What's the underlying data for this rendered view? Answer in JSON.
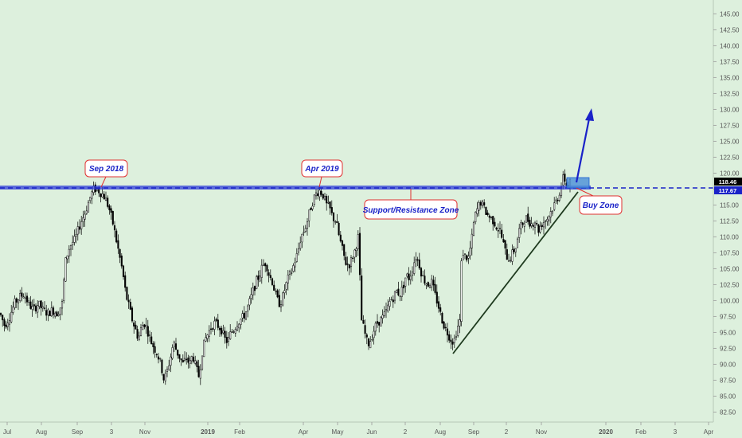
{
  "chart_data": {
    "type": "candlestick",
    "title": "",
    "y_ticks": [
      "82.50",
      "85.00",
      "87.50",
      "90.00",
      "92.50",
      "95.00",
      "97.50",
      "100.00",
      "102.50",
      "105.00",
      "107.50",
      "110.00",
      "112.50",
      "115.00",
      "117.50",
      "120.00",
      "122.50",
      "125.00",
      "127.50",
      "130.00",
      "132.50",
      "135.00",
      "137.50",
      "140.00",
      "142.50",
      "145.00"
    ],
    "x_ticks": [
      "Jul",
      "Aug",
      "Sep",
      "3",
      "Nov",
      "2019",
      "Feb",
      "Apr",
      "May",
      "Jun",
      "2",
      "Aug",
      "Sep",
      "2",
      "Nov",
      "2020",
      "Feb",
      "3",
      "Apr"
    ],
    "ylim": [
      81,
      147
    ],
    "current_price_label": "118.46",
    "level_price_label": "117.67",
    "current_price": 118.46,
    "resistance_level": 117.67,
    "colors": {
      "background": "#ddf0dd",
      "candles": "#000000",
      "level_line": "#1a22c8",
      "zone": "#2f3fd8",
      "buy_zone": "#4a8fd8",
      "trendline": "#1e3a1e",
      "arrow": "#1a22c8",
      "callout_border": "#e03030",
      "current_tag": "#000000",
      "level_tag": "#1a22c8"
    },
    "annotations": [
      {
        "name": "callout-sep-2018",
        "text": "Sep 2018"
      },
      {
        "name": "callout-apr-2019",
        "text": "Apr 2019"
      },
      {
        "name": "callout-support-resistance",
        "text": "Support/Resistance Zone"
      },
      {
        "name": "callout-buy-zone",
        "text": "Buy Zone"
      }
    ],
    "price_path": [
      [
        0,
        98
      ],
      [
        6,
        96
      ],
      [
        12,
        97.5
      ],
      [
        18,
        99.5
      ],
      [
        24,
        100.5
      ],
      [
        30,
        101
      ],
      [
        36,
        99.5
      ],
      [
        42,
        98.5
      ],
      [
        48,
        99.5
      ],
      [
        54,
        98.5
      ],
      [
        60,
        98
      ],
      [
        66,
        98.5
      ],
      [
        72,
        98
      ],
      [
        78,
        99.5
      ],
      [
        82,
        106
      ],
      [
        86,
        108
      ],
      [
        90,
        109
      ],
      [
        94,
        109.5
      ],
      [
        98,
        111
      ],
      [
        102,
        112.5
      ],
      [
        106,
        113.5
      ],
      [
        110,
        115
      ],
      [
        114,
        116.5
      ],
      [
        118,
        117.5
      ],
      [
        122,
        117.5
      ],
      [
        126,
        117
      ],
      [
        130,
        116.5
      ],
      [
        134,
        115.5
      ],
      [
        138,
        114
      ],
      [
        142,
        112
      ],
      [
        146,
        109.5
      ],
      [
        150,
        107
      ],
      [
        154,
        104.5
      ],
      [
        158,
        101
      ],
      [
        162,
        99
      ],
      [
        166,
        97
      ],
      [
        170,
        95.5
      ],
      [
        174,
        94
      ],
      [
        178,
        96
      ],
      [
        182,
        96.5
      ],
      [
        186,
        95
      ],
      [
        190,
        93.5
      ],
      [
        194,
        92.5
      ],
      [
        198,
        91.5
      ],
      [
        202,
        90
      ],
      [
        206,
        87.5
      ],
      [
        210,
        89
      ],
      [
        214,
        91
      ],
      [
        218,
        93.5
      ],
      [
        222,
        92
      ],
      [
        226,
        91
      ],
      [
        230,
        90
      ],
      [
        234,
        91
      ],
      [
        238,
        90
      ],
      [
        242,
        91.5
      ],
      [
        246,
        89.5
      ],
      [
        250,
        88
      ],
      [
        254,
        92
      ],
      [
        258,
        94
      ],
      [
        262,
        95
      ],
      [
        266,
        96
      ],
      [
        270,
        96.5
      ],
      [
        274,
        96
      ],
      [
        278,
        95.5
      ],
      [
        282,
        94
      ],
      [
        286,
        93.5
      ],
      [
        290,
        95
      ],
      [
        294,
        95.5
      ],
      [
        298,
        96.5
      ],
      [
        302,
        97
      ],
      [
        306,
        97.5
      ],
      [
        310,
        98.5
      ],
      [
        314,
        100
      ],
      [
        318,
        101.5
      ],
      [
        322,
        103
      ],
      [
        326,
        104
      ],
      [
        330,
        105.5
      ],
      [
        334,
        106
      ],
      [
        338,
        104
      ],
      [
        342,
        103
      ],
      [
        346,
        101
      ],
      [
        350,
        99.5
      ],
      [
        354,
        100
      ],
      [
        358,
        102
      ],
      [
        362,
        103.5
      ],
      [
        366,
        104.5
      ],
      [
        370,
        106
      ],
      [
        374,
        107.5
      ],
      [
        378,
        110
      ],
      [
        382,
        111
      ],
      [
        386,
        112.5
      ],
      [
        390,
        114.5
      ],
      [
        394,
        116
      ],
      [
        398,
        117
      ],
      [
        402,
        117.3
      ],
      [
        406,
        116.5
      ],
      [
        410,
        115
      ],
      [
        414,
        114.5
      ],
      [
        418,
        113
      ],
      [
        422,
        112.5
      ],
      [
        426,
        110
      ],
      [
        430,
        108
      ],
      [
        434,
        106
      ],
      [
        438,
        105.5
      ],
      [
        442,
        106.5
      ],
      [
        446,
        108
      ],
      [
        450,
        110
      ],
      [
        454,
        97
      ],
      [
        458,
        95
      ],
      [
        462,
        93
      ],
      [
        466,
        94
      ],
      [
        470,
        95.5
      ],
      [
        474,
        96.5
      ],
      [
        478,
        97
      ],
      [
        482,
        97.5
      ],
      [
        486,
        98.5
      ],
      [
        490,
        100
      ],
      [
        494,
        100.5
      ],
      [
        498,
        101.5
      ],
      [
        502,
        101
      ],
      [
        506,
        102
      ],
      [
        510,
        104
      ],
      [
        514,
        103.5
      ],
      [
        518,
        105
      ],
      [
        522,
        107
      ],
      [
        526,
        106
      ],
      [
        530,
        104
      ],
      [
        534,
        103
      ],
      [
        538,
        102.5
      ],
      [
        542,
        103
      ],
      [
        546,
        101
      ],
      [
        550,
        99.5
      ],
      [
        554,
        97.5
      ],
      [
        558,
        96
      ],
      [
        562,
        95
      ],
      [
        566,
        94
      ],
      [
        570,
        93.5
      ],
      [
        574,
        95.5
      ],
      [
        578,
        97
      ],
      [
        580,
        108
      ],
      [
        584,
        107
      ],
      [
        588,
        106.5
      ],
      [
        592,
        109
      ],
      [
        596,
        113
      ],
      [
        600,
        114.5
      ],
      [
        604,
        115.5
      ],
      [
        608,
        114.5
      ],
      [
        612,
        113.5
      ],
      [
        616,
        113
      ],
      [
        620,
        112.5
      ],
      [
        624,
        111.5
      ],
      [
        628,
        111
      ],
      [
        632,
        109
      ],
      [
        636,
        107
      ],
      [
        640,
        106.5
      ],
      [
        644,
        107.5
      ],
      [
        648,
        108.5
      ],
      [
        652,
        111
      ],
      [
        656,
        112
      ],
      [
        660,
        113
      ],
      [
        664,
        112.5
      ],
      [
        668,
        112
      ],
      [
        672,
        112.5
      ],
      [
        676,
        111
      ],
      [
        680,
        112
      ],
      [
        684,
        112.5
      ],
      [
        688,
        113
      ],
      [
        692,
        114
      ],
      [
        696,
        115
      ],
      [
        700,
        116
      ],
      [
        704,
        117.5
      ],
      [
        708,
        119.5
      ],
      [
        712,
        118
      ],
      [
        716,
        118.5
      ],
      [
        718,
        118.46
      ]
    ]
  }
}
